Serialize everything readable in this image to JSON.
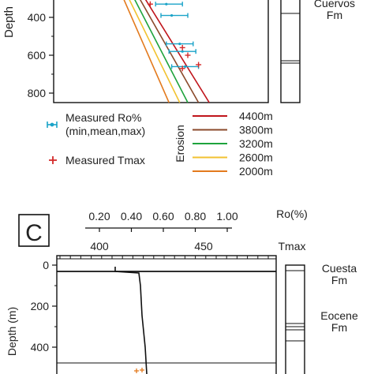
{
  "chart_data": [
    {
      "type": "line",
      "panel": "upper",
      "ylabel": "Depth",
      "yticks": [
        400,
        600,
        800
      ],
      "ylim": [
        300,
        850
      ],
      "xlim": [
        0.2,
        1.0
      ],
      "formation": "Cuervos\nFm",
      "formation_line1": "Cuervos",
      "formation_line2": "Fm",
      "legend_title": "Erosion",
      "series": [
        {
          "name": "4400m",
          "color": "#c0141b",
          "x": [
            0.54,
            0.78
          ],
          "y": [
            300,
            850
          ]
        },
        {
          "name": "3800m",
          "color": "#8b4a2b",
          "x": [
            0.52,
            0.74
          ],
          "y": [
            300,
            850
          ]
        },
        {
          "name": "3200m",
          "color": "#1ea33c",
          "x": [
            0.5,
            0.7
          ],
          "y": [
            300,
            850
          ]
        },
        {
          "name": "2600m",
          "color": "#f2c230",
          "x": [
            0.48,
            0.67
          ],
          "y": [
            300,
            850
          ]
        },
        {
          "name": "2000m",
          "color": "#e37a1d",
          "x": [
            0.46,
            0.63
          ],
          "y": [
            300,
            850
          ]
        }
      ],
      "measured_ro": [
        {
          "depth": 330,
          "min": 0.58,
          "mean": 0.62,
          "max": 0.68
        },
        {
          "depth": 390,
          "min": 0.6,
          "mean": 0.64,
          "max": 0.7
        },
        {
          "depth": 540,
          "min": 0.62,
          "mean": 0.67,
          "max": 0.72
        },
        {
          "depth": 580,
          "min": 0.63,
          "mean": 0.68,
          "max": 0.73
        },
        {
          "depth": 660,
          "min": 0.64,
          "mean": 0.69,
          "max": 0.74
        }
      ],
      "measured_tmax": [
        {
          "depth": 330,
          "ro_eq": 0.56
        },
        {
          "depth": 560,
          "ro_eq": 0.68
        },
        {
          "depth": 600,
          "ro_eq": 0.7
        },
        {
          "depth": 650,
          "ro_eq": 0.74
        },
        {
          "depth": 670,
          "ro_eq": 0.68
        }
      ]
    },
    {
      "type": "line",
      "panel": "C",
      "panel_label": "C",
      "xlabel_top": "Ro(%)",
      "xticks_top": [
        "0.20",
        "0.40",
        "0.60",
        "0.80",
        "1.00"
      ],
      "xlabel_bottom": "Tmax",
      "xticks_bottom": [
        "400",
        "450"
      ],
      "ylabel": "Depth (m)",
      "yticks": [
        "0",
        "200",
        "400"
      ],
      "ylim": [
        0,
        540
      ],
      "profile": {
        "x": [
          0.42,
          0.42,
          0.44,
          0.47
        ],
        "y": [
          20,
          50,
          300,
          540
        ]
      },
      "formations": [
        {
          "line1": "Cuesta",
          "line2": "Fm"
        },
        {
          "line1": "Eocene",
          "line2": "Fm"
        }
      ]
    }
  ],
  "legend": {
    "ro_label_line1": "Measured Ro%",
    "ro_label_line2": "(min,mean,max)",
    "tmax_label": "Measured Tmax"
  }
}
